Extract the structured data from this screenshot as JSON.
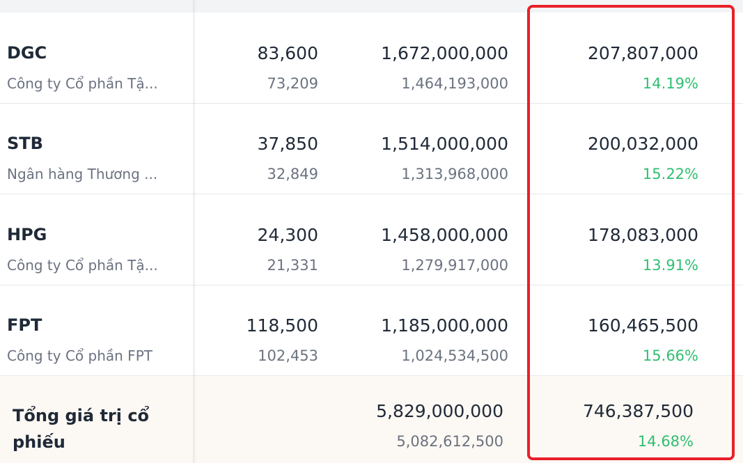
{
  "rows": [
    {
      "symbol": "DGC",
      "company": "Công ty Cổ phần Tậ...",
      "price": "83,600",
      "avg_price": "73,209",
      "market_value": "1,672,000,000",
      "cost": "1,464,193,000",
      "profit": "207,807,000",
      "profit_pct": "14.19%"
    },
    {
      "symbol": "STB",
      "company": "Ngân hàng Thương ...",
      "price": "37,850",
      "avg_price": "32,849",
      "market_value": "1,514,000,000",
      "cost": "1,313,968,000",
      "profit": "200,032,000",
      "profit_pct": "15.22%"
    },
    {
      "symbol": "HPG",
      "company": "Công ty Cổ phần Tậ...",
      "price": "24,300",
      "avg_price": "21,331",
      "market_value": "1,458,000,000",
      "cost": "1,279,917,000",
      "profit": "178,083,000",
      "profit_pct": "13.91%"
    },
    {
      "symbol": "FPT",
      "company": "Công ty Cổ phần FPT",
      "price": "118,500",
      "avg_price": "102,453",
      "market_value": "1,185,000,000",
      "cost": "1,024,534,500",
      "profit": "160,465,500",
      "profit_pct": "15.66%"
    }
  ],
  "total": {
    "label": "Tổng giá trị cổ phiếu",
    "market_value": "5,829,000,000",
    "cost": "5,082,612,500",
    "profit": "746,387,500",
    "profit_pct": "14.68%"
  },
  "colors": {
    "gain": "#2fbf71",
    "highlight": "#e8202a",
    "total_bg": "#fcf8f3"
  }
}
